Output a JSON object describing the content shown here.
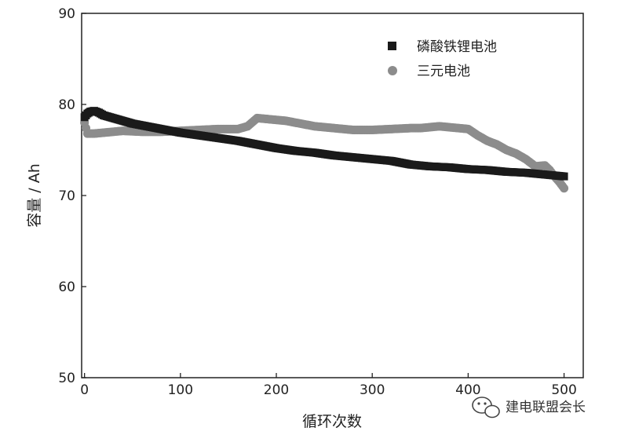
{
  "chart_data": {
    "type": "scatter",
    "xlabel": "循环次数",
    "ylabel": "容量 / Ah",
    "xlim": [
      -3,
      520
    ],
    "ylim": [
      50,
      90
    ],
    "xticks": [
      0,
      100,
      200,
      300,
      400,
      500
    ],
    "yticks": [
      50,
      60,
      70,
      80,
      90
    ],
    "xtick_labels": [
      "0",
      "100",
      "200",
      "300",
      "400",
      "500"
    ],
    "ytick_labels": [
      "50",
      "60",
      "70",
      "80",
      "90"
    ],
    "grid": false,
    "legend_position": "top-right",
    "series": [
      {
        "name": "磷酸铁锂电池",
        "marker": "square",
        "color": "#1a1a1a",
        "points": [
          [
            0,
            78.6
          ],
          [
            3,
            79.0
          ],
          [
            6,
            79.2
          ],
          [
            10,
            79.3
          ],
          [
            15,
            79.1
          ],
          [
            20,
            78.8
          ],
          [
            30,
            78.5
          ],
          [
            40,
            78.2
          ],
          [
            50,
            77.9
          ],
          [
            60,
            77.7
          ],
          [
            70,
            77.5
          ],
          [
            80,
            77.3
          ],
          [
            90,
            77.1
          ],
          [
            100,
            76.9
          ],
          [
            120,
            76.6
          ],
          [
            140,
            76.3
          ],
          [
            160,
            76.0
          ],
          [
            180,
            75.6
          ],
          [
            200,
            75.2
          ],
          [
            220,
            74.9
          ],
          [
            240,
            74.7
          ],
          [
            260,
            74.4
          ],
          [
            280,
            74.2
          ],
          [
            300,
            74.0
          ],
          [
            320,
            73.8
          ],
          [
            340,
            73.4
          ],
          [
            360,
            73.2
          ],
          [
            380,
            73.1
          ],
          [
            400,
            72.9
          ],
          [
            420,
            72.8
          ],
          [
            440,
            72.6
          ],
          [
            460,
            72.5
          ],
          [
            480,
            72.3
          ],
          [
            490,
            72.2
          ],
          [
            500,
            72.1
          ]
        ]
      },
      {
        "name": "三元电池",
        "marker": "circle",
        "color": "#8c8c8c",
        "points": [
          [
            0,
            78.0
          ],
          [
            3,
            76.8
          ],
          [
            10,
            76.8
          ],
          [
            20,
            76.9
          ],
          [
            40,
            77.1
          ],
          [
            60,
            77.0
          ],
          [
            80,
            77.0
          ],
          [
            100,
            77.1
          ],
          [
            120,
            77.2
          ],
          [
            140,
            77.3
          ],
          [
            160,
            77.3
          ],
          [
            170,
            77.6
          ],
          [
            180,
            78.5
          ],
          [
            190,
            78.4
          ],
          [
            200,
            78.3
          ],
          [
            210,
            78.2
          ],
          [
            220,
            78.0
          ],
          [
            240,
            77.6
          ],
          [
            260,
            77.4
          ],
          [
            280,
            77.2
          ],
          [
            300,
            77.2
          ],
          [
            320,
            77.3
          ],
          [
            340,
            77.4
          ],
          [
            350,
            77.4
          ],
          [
            360,
            77.5
          ],
          [
            370,
            77.6
          ],
          [
            380,
            77.5
          ],
          [
            390,
            77.4
          ],
          [
            400,
            77.3
          ],
          [
            410,
            76.6
          ],
          [
            420,
            76.0
          ],
          [
            430,
            75.6
          ],
          [
            440,
            75.0
          ],
          [
            450,
            74.6
          ],
          [
            460,
            74.0
          ],
          [
            470,
            73.2
          ],
          [
            480,
            73.3
          ],
          [
            485,
            72.8
          ],
          [
            490,
            72.1
          ],
          [
            495,
            71.5
          ],
          [
            500,
            70.8
          ]
        ]
      }
    ]
  },
  "watermark": {
    "icon": "wechat-icon",
    "text": "建电联盟会长"
  }
}
